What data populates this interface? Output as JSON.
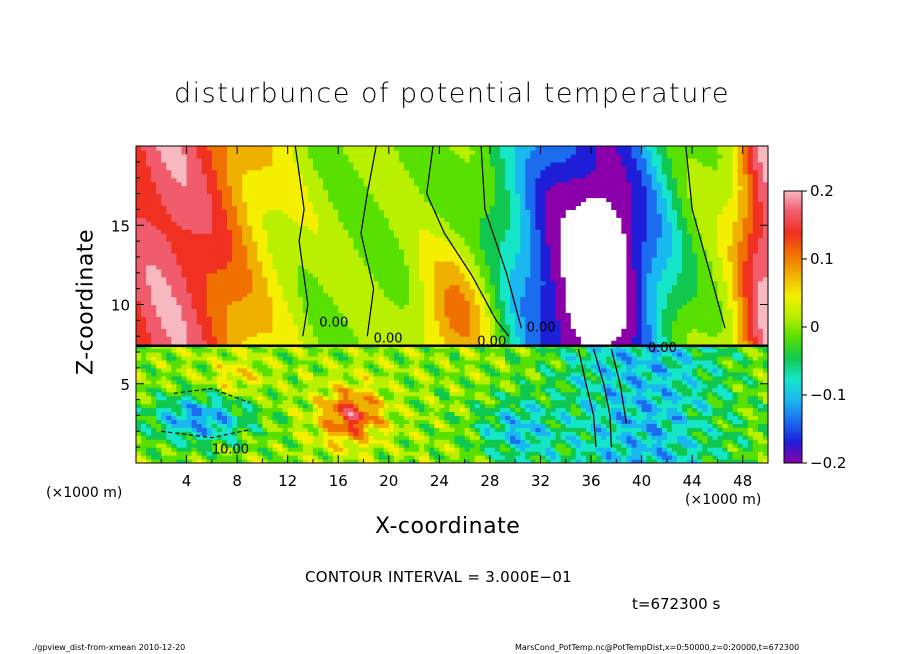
{
  "chart_data": {
    "type": "heatmap",
    "title": "disturbunce of potential temperature",
    "xlabel": "X-coordinate",
    "ylabel": "Z-coordinate",
    "x_unit": "(×1000 m)",
    "x_ticks": [
      "4",
      "8",
      "12",
      "16",
      "20",
      "24",
      "28",
      "32",
      "36",
      "40",
      "44",
      "48"
    ],
    "y_ticks": [
      "5",
      "10",
      "15"
    ],
    "xlim": [
      0,
      50
    ],
    "ylim": [
      0,
      20
    ],
    "colorbar": {
      "ticks": [
        "0.2",
        "0.1",
        "0",
        "−0.1",
        "−0.2"
      ],
      "range": [
        -0.2,
        0.2
      ]
    },
    "contour_labels": [
      "0.00",
      "0.00",
      "0.00",
      "0.00",
      "0.00",
      "10.00"
    ],
    "contour_interval_text": "CONTOUR INTERVAL = 3.000E−01",
    "time_text": "t=672300 s"
  },
  "footer": {
    "left": "./gpview_dist-from-xmean  2010-12-20",
    "right": "MarsCond_PotTemp.nc@PotTempDist,x=0:50000,z=0:20000,t=672300"
  },
  "palette": [
    "#8b00a8",
    "#1e1ed8",
    "#1c6cf0",
    "#1ab8f0",
    "#16e6c8",
    "#10c850",
    "#58e000",
    "#b8f000",
    "#f4f000",
    "#f0b000",
    "#f07000",
    "#f03020",
    "#f05c6c",
    "#f8b8c0"
  ]
}
